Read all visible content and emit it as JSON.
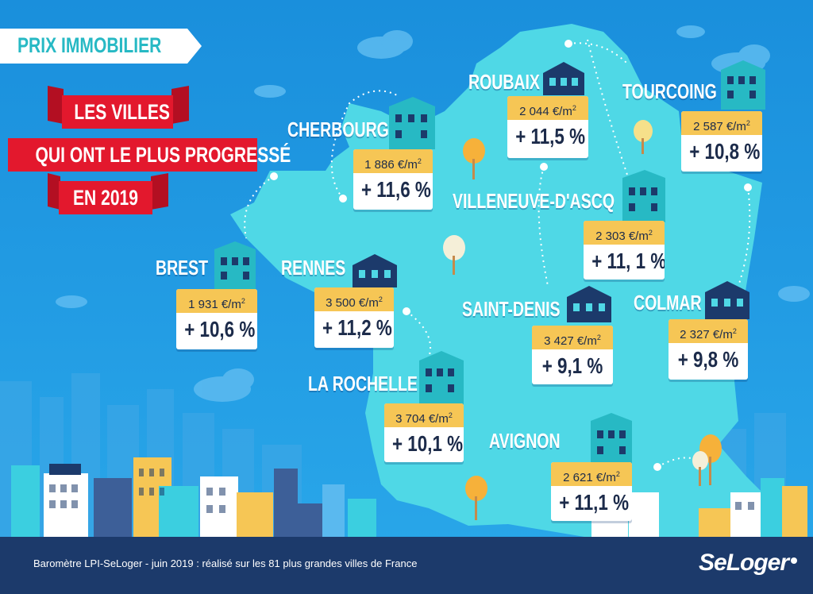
{
  "banner": {
    "prix": "PRIX IMMOBILIER"
  },
  "headline": {
    "line1": "LES VILLES",
    "line2": "QUI ONT LE PLUS PROGRESSÉ",
    "line3": "EN 2019"
  },
  "cities": [
    {
      "name": "ROUBAIX",
      "price": "2 044 €/m",
      "price_unit_sup": "2",
      "change": "+ 11,5 %"
    },
    {
      "name": "TOURCOING",
      "price": "2 587 €/m",
      "price_unit_sup": "2",
      "change": "+ 10,8 %"
    },
    {
      "name": "CHERBOURG",
      "price": "1 886 €/m",
      "price_unit_sup": "2",
      "change": "+ 11,6 %"
    },
    {
      "name": "VILLENEUVE-D'ASCQ",
      "price": "2 303 €/m",
      "price_unit_sup": "2",
      "change": "+ 11, 1 %"
    },
    {
      "name": "BREST",
      "price": "1 931 €/m",
      "price_unit_sup": "2",
      "change": "+ 10,6 %"
    },
    {
      "name": "RENNES",
      "price": "3 500 €/m",
      "price_unit_sup": "2",
      "change": "+ 11,2 %"
    },
    {
      "name": "SAINT-DENIS",
      "price": "3 427 €/m",
      "price_unit_sup": "2",
      "change": "+ 9,1 %"
    },
    {
      "name": "COLMAR",
      "price": "2 327 €/m",
      "price_unit_sup": "2",
      "change": "+ 9,8 %"
    },
    {
      "name": "LA ROCHELLE",
      "price": "3 704 €/m",
      "price_unit_sup": "2",
      "change": "+ 10,1 %"
    },
    {
      "name": "AVIGNON",
      "price": "2 621 €/m",
      "price_unit_sup": "2",
      "change": "+ 11,1 %"
    }
  ],
  "footer": {
    "caption": "Baromètre LPI-SeLoger - juin 2019 : réalisé sur les 81 plus grandes villes de France",
    "logo": "SeLoger"
  },
  "colors": {
    "sky": "#1e9be4",
    "map": "#4fd8e6",
    "accent_red": "#e3182d",
    "price_yellow": "#f6c655",
    "navy": "#1c3a6b"
  }
}
